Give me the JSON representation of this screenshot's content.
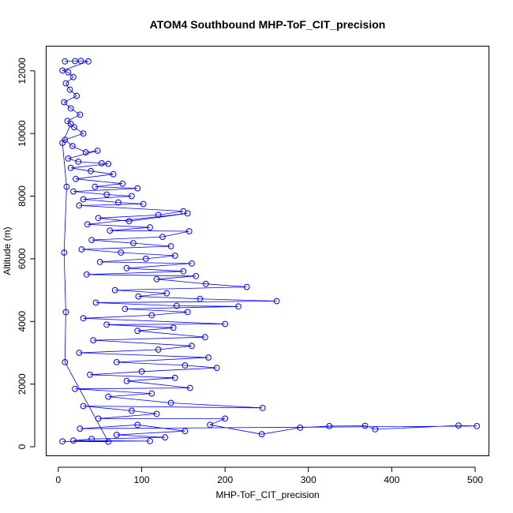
{
  "chart_data": {
    "type": "scatter",
    "title": "ATOM4 Southbound MHP-ToF_CIT_precision",
    "xlabel": "MHP-ToF_CIT_precision",
    "ylabel": "Altitude (m)",
    "xlim": [
      -15,
      517
    ],
    "ylim": [
      -300,
      12800
    ],
    "x_ticks": [
      0,
      100,
      200,
      300,
      400,
      500
    ],
    "y_ticks": [
      0,
      2000,
      4000,
      6000,
      8000,
      10000,
      12000
    ],
    "x_tick_labels": [
      "0",
      "100",
      "200",
      "300",
      "400",
      "500"
    ],
    "y_tick_labels": [
      "0",
      "2000",
      "4000",
      "6000",
      "8000",
      "10000",
      "12000"
    ],
    "grid": false,
    "legend": "none",
    "series_color": "#0000ff",
    "marker": "open-circle",
    "connected": true,
    "series": [
      {
        "points": [
          [
            8,
            12300
          ],
          [
            20,
            12310
          ],
          [
            27,
            12320
          ],
          [
            36,
            12300
          ],
          [
            5,
            12010
          ],
          [
            12,
            11950
          ],
          [
            18,
            11800
          ],
          [
            9,
            11600
          ],
          [
            14,
            11400
          ],
          [
            22,
            11200
          ],
          [
            7,
            11000
          ],
          [
            15,
            10800
          ],
          [
            26,
            10600
          ],
          [
            11,
            10400
          ],
          [
            19,
            10200
          ],
          [
            30,
            10000
          ],
          [
            8,
            9800
          ],
          [
            17,
            9600
          ],
          [
            33,
            9400
          ],
          [
            47,
            9450
          ],
          [
            12,
            9200
          ],
          [
            24,
            9100
          ],
          [
            52,
            9050
          ],
          [
            60,
            9030
          ],
          [
            15,
            8900
          ],
          [
            39,
            8800
          ],
          [
            66,
            8700
          ],
          [
            21,
            8550
          ],
          [
            77,
            8400
          ],
          [
            44,
            8300
          ],
          [
            95,
            8250
          ],
          [
            18,
            8150
          ],
          [
            58,
            8050
          ],
          [
            88,
            8000
          ],
          [
            30,
            7900
          ],
          [
            72,
            7800
          ],
          [
            102,
            7750
          ],
          [
            25,
            7700
          ],
          [
            150,
            7520
          ],
          [
            120,
            7400
          ],
          [
            48,
            7300
          ],
          [
            85,
            7200
          ],
          [
            155,
            7450
          ],
          [
            35,
            7100
          ],
          [
            110,
            7000
          ],
          [
            62,
            6900
          ],
          [
            157,
            6880
          ],
          [
            125,
            6700
          ],
          [
            40,
            6600
          ],
          [
            90,
            6500
          ],
          [
            135,
            6400
          ],
          [
            28,
            6300
          ],
          [
            75,
            6200
          ],
          [
            140,
            6100
          ],
          [
            105,
            6000
          ],
          [
            50,
            5900
          ],
          [
            160,
            5850
          ],
          [
            82,
            5700
          ],
          [
            150,
            5600
          ],
          [
            34,
            5500
          ],
          [
            165,
            5450
          ],
          [
            118,
            5350
          ],
          [
            177,
            5200
          ],
          [
            226,
            5100
          ],
          [
            68,
            5000
          ],
          [
            130,
            4900
          ],
          [
            96,
            4800
          ],
          [
            170,
            4720
          ],
          [
            262,
            4650
          ],
          [
            45,
            4600
          ],
          [
            142,
            4500
          ],
          [
            216,
            4480
          ],
          [
            80,
            4400
          ],
          [
            155,
            4300
          ],
          [
            112,
            4200
          ],
          [
            30,
            4100
          ],
          [
            200,
            3920
          ],
          [
            58,
            3900
          ],
          [
            138,
            3800
          ],
          [
            95,
            3700
          ],
          [
            176,
            3500
          ],
          [
            42,
            3400
          ],
          [
            160,
            3220
          ],
          [
            120,
            3100
          ],
          [
            25,
            3000
          ],
          [
            180,
            2850
          ],
          [
            70,
            2700
          ],
          [
            152,
            2600
          ],
          [
            190,
            2520
          ],
          [
            100,
            2400
          ],
          [
            38,
            2300
          ],
          [
            140,
            2200
          ],
          [
            82,
            2100
          ],
          [
            158,
            1880
          ],
          [
            20,
            1850
          ],
          [
            112,
            1700
          ],
          [
            60,
            1600
          ],
          [
            135,
            1400
          ],
          [
            245,
            1240
          ],
          [
            30,
            1300
          ],
          [
            88,
            1150
          ],
          [
            118,
            1050
          ],
          [
            48,
            900
          ],
          [
            200,
            900
          ],
          [
            182,
            700
          ],
          [
            244,
            400
          ],
          [
            290,
            610
          ],
          [
            325,
            660
          ],
          [
            368,
            670
          ],
          [
            380,
            560
          ],
          [
            480,
            680
          ],
          [
            502,
            660
          ],
          [
            26,
            580
          ],
          [
            95,
            700
          ],
          [
            152,
            500
          ],
          [
            70,
            380
          ],
          [
            128,
            300
          ],
          [
            40,
            250
          ],
          [
            18,
            200
          ],
          [
            110,
            180
          ],
          [
            5,
            170
          ],
          [
            60,
            160
          ],
          [
            8,
            2700
          ],
          [
            9,
            4300
          ],
          [
            7,
            6200
          ],
          [
            10,
            8300
          ],
          [
            5,
            9700
          ],
          [
            15,
            10300
          ]
        ]
      }
    ]
  }
}
